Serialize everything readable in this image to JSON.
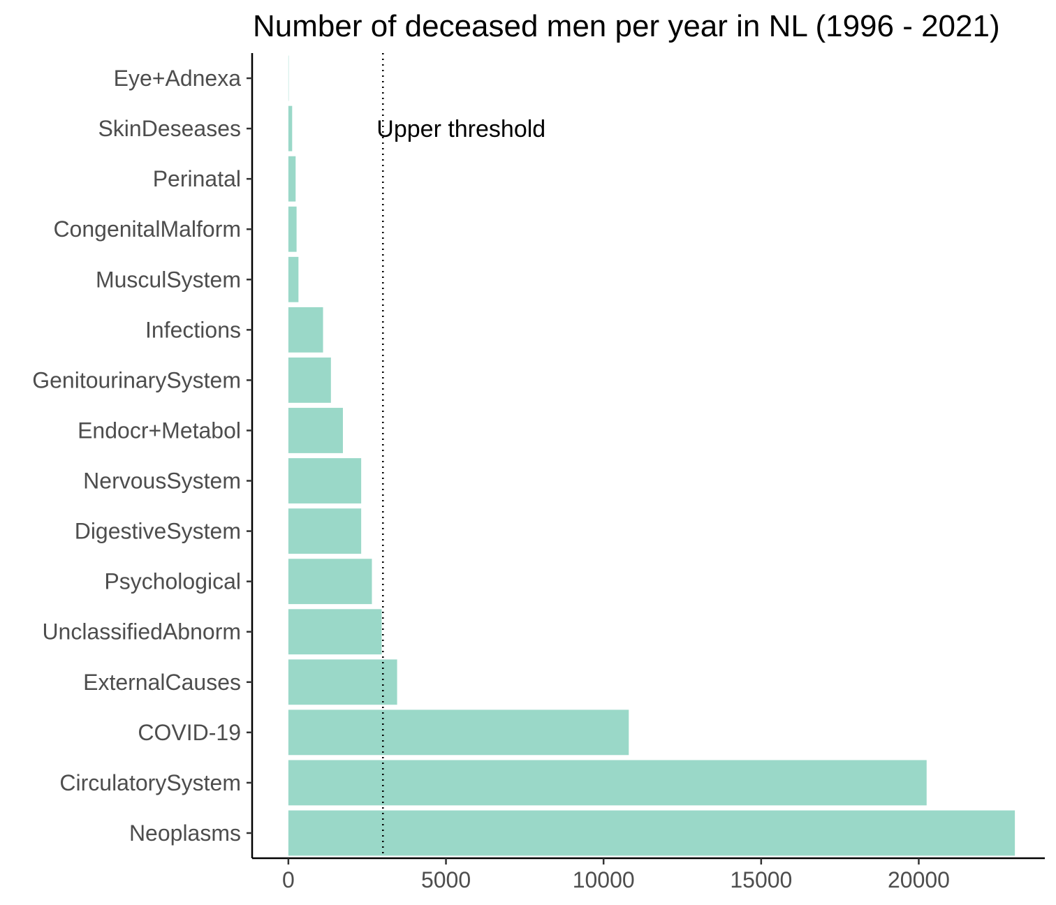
{
  "chart_data": {
    "type": "bar",
    "orientation": "horizontal",
    "title": "Number of deceased men per year in NL (1996 - 2021)",
    "xlabel": "",
    "ylabel": "",
    "categories": [
      "Eye+Adnexa",
      "SkinDeseases",
      "Perinatal",
      "CongenitalMalform",
      "MusculSystem",
      "Infections",
      "GenitourinarySystem",
      "Endocr+Metabol",
      "NervousSystem",
      "DigestiveSystem",
      "Psychological",
      "UnclassifiedAbnorm",
      "ExternalCauses",
      "COVID-19",
      "CirculatorySystem",
      "Neoplasms"
    ],
    "values": [
      10,
      120,
      230,
      260,
      320,
      1100,
      1350,
      1730,
      2310,
      2310,
      2650,
      2960,
      3450,
      10800,
      20250,
      23050
    ],
    "xlim": [
      -1150,
      24000
    ],
    "xticks": [
      0,
      5000,
      10000,
      15000,
      20000
    ],
    "reference_line": {
      "value": 3000,
      "label": "Upper threshold",
      "style": "dotted"
    },
    "bar_color": "#9ad8c8",
    "grid": false,
    "legend": "none"
  }
}
